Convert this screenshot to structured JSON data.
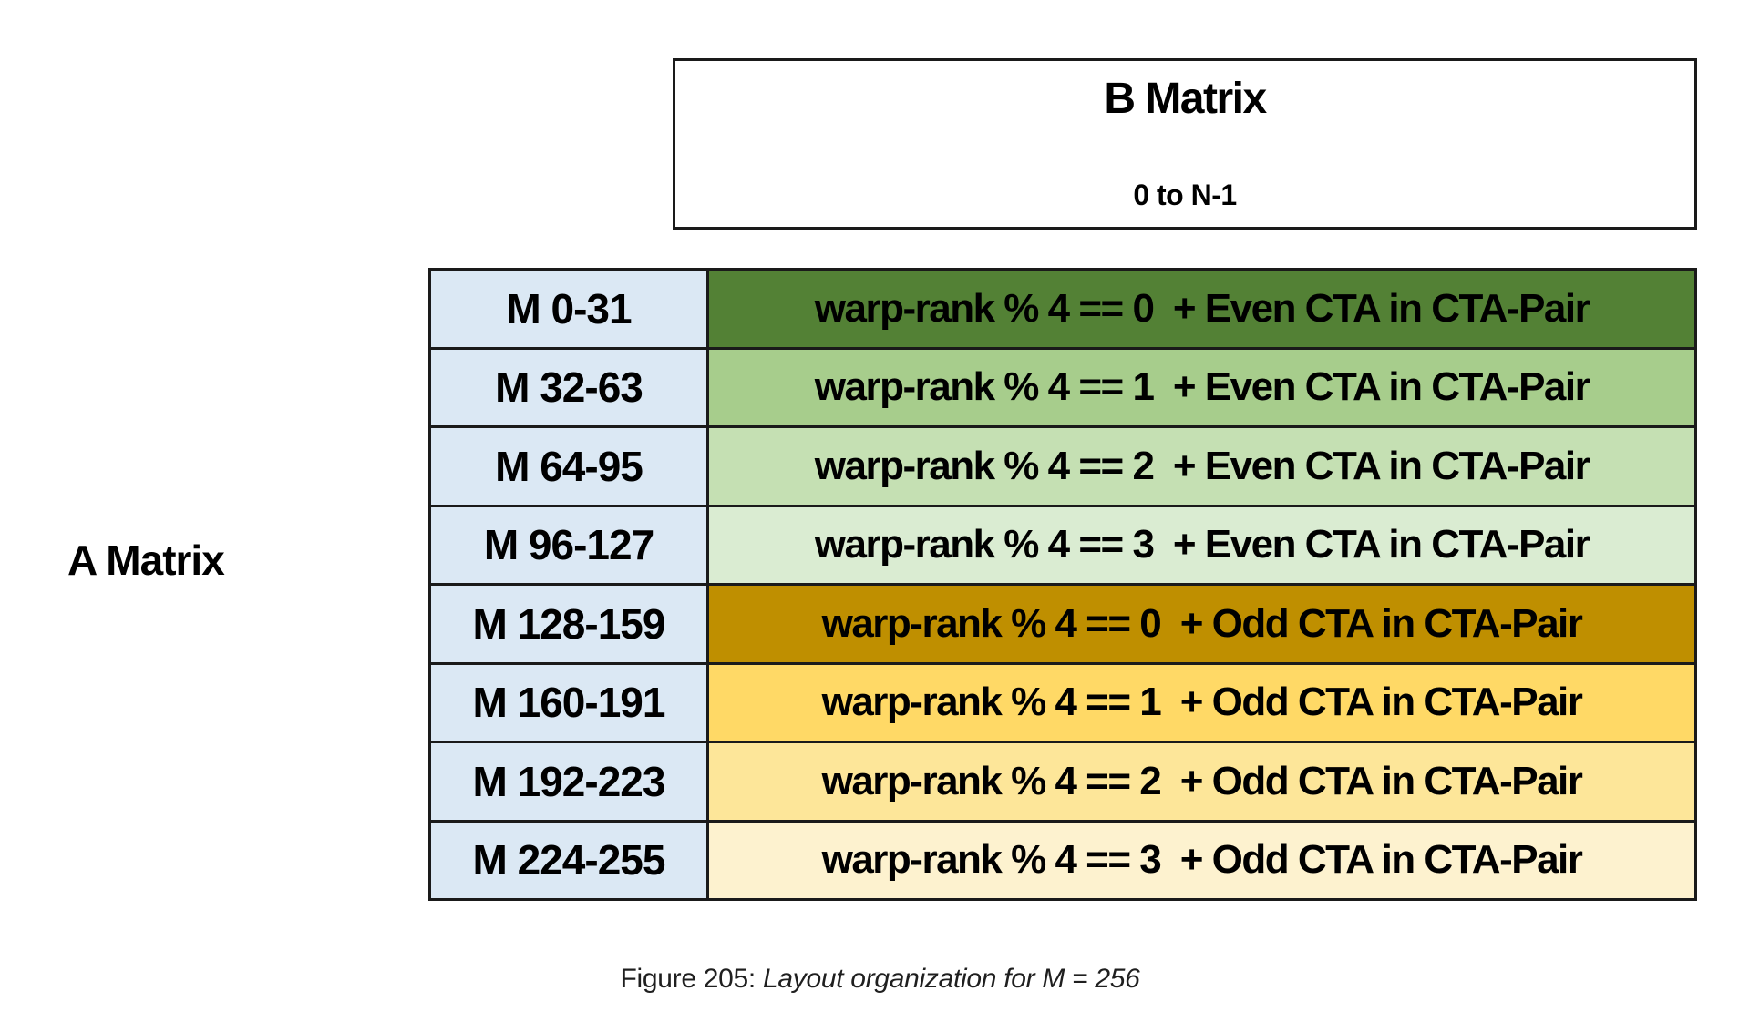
{
  "page": {
    "background": "#ffffff",
    "border_color": "#1a1a1a"
  },
  "b_matrix_box": {
    "title": "B Matrix",
    "subtitle": "0 to N-1"
  },
  "a_matrix_label": "A Matrix",
  "table": {
    "m_column_bg": "#dbe8f4",
    "rows": [
      {
        "m": "M 0-31",
        "desc": "warp-rank % 4 == 0  + Even CTA in CTA-Pair",
        "bg": "#538135"
      },
      {
        "m": "M 32-63",
        "desc": "warp-rank % 4 == 1  + Even CTA in CTA-Pair",
        "bg": "#a7cd8c"
      },
      {
        "m": "M 64-95",
        "desc": "warp-rank % 4 == 2  + Even CTA in CTA-Pair",
        "bg": "#c5e0b3"
      },
      {
        "m": "M 96-127",
        "desc": "warp-rank % 4 == 3  + Even CTA in CTA-Pair",
        "bg": "#daecd2"
      },
      {
        "m": "M 128-159",
        "desc": "warp-rank % 4 == 0  + Odd CTA in CTA-Pair",
        "bg": "#bf8f00"
      },
      {
        "m": "M 160-191",
        "desc": "warp-rank % 4 == 1  + Odd CTA in CTA-Pair",
        "bg": "#ffd966"
      },
      {
        "m": "M 192-223",
        "desc": "warp-rank % 4 == 2  + Odd CTA in CTA-Pair",
        "bg": "#fde699"
      },
      {
        "m": "M 224-255",
        "desc": "warp-rank % 4 == 3  + Odd CTA in CTA-Pair",
        "bg": "#fdf2cf"
      }
    ]
  },
  "caption": {
    "prefix": "Figure 205: ",
    "italic": "Layout organization for M = 256"
  }
}
